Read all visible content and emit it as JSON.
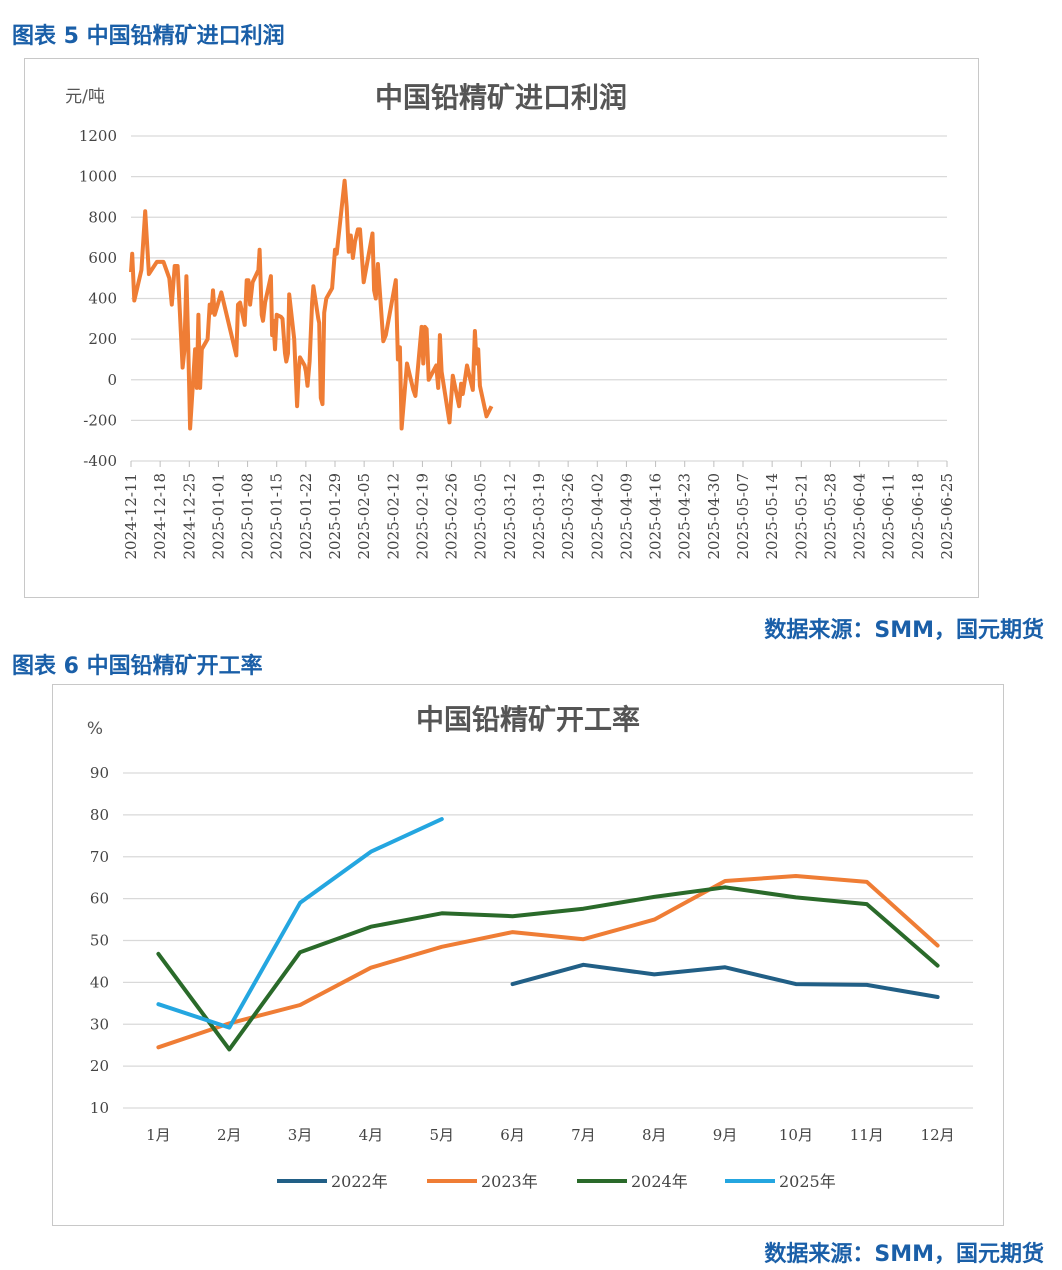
{
  "figure5": {
    "caption": "图表 5 中国铅精矿进口利润",
    "source": "数据来源：SMM，国元期货"
  },
  "figure6": {
    "caption": "图表 6 中国铅精矿开工率",
    "source": "数据来源：SMM，国元期货"
  },
  "colors": {
    "caption": "#1a5fa8",
    "profit_line": "#ef7d35",
    "series_2022": "#215f86",
    "series_2023": "#ef7d35",
    "series_2024": "#2a6a2a",
    "series_2025": "#24a6e0",
    "grid": "#d9d9d9"
  },
  "chart_data": [
    {
      "type": "line",
      "title": "中国铅精矿进口利润",
      "ylabel": "元/吨",
      "xlabel": "",
      "ylim": [
        -400,
        1200
      ],
      "yticks": [
        1200,
        1000,
        800,
        600,
        400,
        200,
        0,
        -200,
        -400
      ],
      "x_range": [
        "2024-12-11",
        "2025-06-25"
      ],
      "x_ticks": [
        "2024-12-11",
        "2024-12-18",
        "2024-12-25",
        "2025-01-01",
        "2025-01-08",
        "2025-01-15",
        "2025-01-22",
        "2025-01-29",
        "2025-02-05",
        "2025-02-12",
        "2025-02-19",
        "2025-02-26",
        "2025-03-05",
        "2025-03-12",
        "2025-03-19",
        "2025-03-26",
        "2025-04-02",
        "2025-04-09",
        "2025-04-16",
        "2025-04-23",
        "2025-04-30",
        "2025-05-07",
        "2025-05-14",
        "2025-05-21",
        "2025-05-28",
        "2025-06-04",
        "2025-06-11",
        "2025-06-18",
        "2025-06-25"
      ],
      "series": [
        {
          "name": "进口利润",
          "points": [
            [
              0.0,
              530
            ],
            [
              0.3,
              620
            ],
            [
              0.8,
              390
            ],
            [
              2.5,
              540
            ],
            [
              3.4,
              830
            ],
            [
              4.3,
              520
            ],
            [
              6.2,
              580
            ],
            [
              7.8,
              580
            ],
            [
              9.2,
              500
            ],
            [
              9.8,
              370
            ],
            [
              10.5,
              560
            ],
            [
              11.2,
              560
            ],
            [
              12.4,
              60
            ],
            [
              12.8,
              140
            ],
            [
              13.3,
              510
            ],
            [
              13.7,
              220
            ],
            [
              14.2,
              -240
            ],
            [
              15.4,
              150
            ],
            [
              15.8,
              -40
            ],
            [
              16.2,
              320
            ],
            [
              16.6,
              -40
            ],
            [
              17.0,
              150
            ],
            [
              18.4,
              200
            ],
            [
              18.9,
              370
            ],
            [
              19.3,
              330
            ],
            [
              19.7,
              440
            ],
            [
              20.1,
              320
            ],
            [
              21.7,
              430
            ],
            [
              25.3,
              120
            ],
            [
              25.7,
              370
            ],
            [
              26.2,
              380
            ],
            [
              27.3,
              270
            ],
            [
              27.8,
              490
            ],
            [
              28.2,
              490
            ],
            [
              28.6,
              370
            ],
            [
              29.2,
              480
            ],
            [
              30.6,
              540
            ],
            [
              30.9,
              640
            ],
            [
              31.4,
              320
            ],
            [
              31.7,
              290
            ],
            [
              32.2,
              380
            ],
            [
              33.6,
              510
            ],
            [
              33.9,
              220
            ],
            [
              34.2,
              290
            ],
            [
              34.6,
              150
            ],
            [
              35.0,
              320
            ],
            [
              36.0,
              310
            ],
            [
              36.4,
              300
            ],
            [
              37.0,
              130
            ],
            [
              37.3,
              90
            ],
            [
              37.7,
              130
            ],
            [
              38.0,
              420
            ],
            [
              39.2,
              200
            ],
            [
              39.9,
              -130
            ],
            [
              40.3,
              50
            ],
            [
              40.6,
              110
            ],
            [
              41.7,
              70
            ],
            [
              42.0,
              40
            ],
            [
              42.4,
              -30
            ],
            [
              42.9,
              90
            ],
            [
              43.5,
              380
            ],
            [
              43.8,
              460
            ],
            [
              45.0,
              300
            ],
            [
              45.2,
              280
            ],
            [
              45.6,
              -90
            ],
            [
              46.0,
              -120
            ],
            [
              46.4,
              330
            ],
            [
              46.9,
              400
            ],
            [
              48.3,
              450
            ],
            [
              49.0,
              640
            ],
            [
              49.4,
              620
            ],
            [
              51.3,
              980
            ],
            [
              51.8,
              850
            ],
            [
              52.3,
              630
            ],
            [
              52.8,
              710
            ],
            [
              53.3,
              600
            ],
            [
              53.8,
              680
            ],
            [
              54.5,
              740
            ],
            [
              55.0,
              740
            ],
            [
              55.9,
              480
            ],
            [
              58.0,
              720
            ],
            [
              58.4,
              440
            ],
            [
              58.8,
              400
            ],
            [
              59.3,
              570
            ],
            [
              60.6,
              190
            ],
            [
              61.2,
              220
            ],
            [
              63.6,
              490
            ],
            [
              64.1,
              100
            ],
            [
              64.6,
              160
            ],
            [
              65.0,
              -240
            ],
            [
              66.3,
              80
            ],
            [
              67.8,
              -50
            ],
            [
              68.3,
              -80
            ],
            [
              69.8,
              260
            ],
            [
              70.2,
              80
            ],
            [
              70.6,
              260
            ],
            [
              71.0,
              250
            ],
            [
              71.5,
              0
            ],
            [
              73.3,
              70
            ],
            [
              73.8,
              -40
            ],
            [
              74.2,
              220
            ],
            [
              74.6,
              40
            ],
            [
              76.5,
              -210
            ],
            [
              77.3,
              20
            ],
            [
              78.8,
              -130
            ],
            [
              79.3,
              -20
            ],
            [
              79.7,
              -70
            ],
            [
              80.7,
              70
            ],
            [
              82.1,
              -50
            ],
            [
              82.6,
              240
            ],
            [
              83.0,
              80
            ],
            [
              83.4,
              150
            ],
            [
              83.8,
              -30
            ],
            [
              85.4,
              -180
            ],
            [
              86.6,
              -130
            ]
          ]
        }
      ]
    },
    {
      "type": "line",
      "title": "中国铅精矿开工率",
      "ylabel": "%",
      "xlabel": "",
      "ylim": [
        10,
        90
      ],
      "yticks": [
        90,
        80,
        70,
        60,
        50,
        40,
        30,
        20,
        10
      ],
      "categories": [
        "1月",
        "2月",
        "3月",
        "4月",
        "5月",
        "6月",
        "7月",
        "8月",
        "9月",
        "10月",
        "11月",
        "12月"
      ],
      "series": [
        {
          "name": "2022年",
          "values": [
            null,
            null,
            null,
            null,
            null,
            39.6,
            44.2,
            41.9,
            43.6,
            39.6,
            39.4,
            36.5
          ]
        },
        {
          "name": "2023年",
          "values": [
            24.5,
            30.2,
            34.6,
            43.5,
            48.5,
            52.0,
            50.3,
            55.0,
            64.2,
            65.4,
            64.0,
            48.8
          ]
        },
        {
          "name": "2024年",
          "values": [
            46.8,
            24.0,
            47.2,
            53.3,
            56.5,
            55.8,
            57.6,
            60.4,
            62.7,
            60.3,
            58.7,
            44.0
          ]
        },
        {
          "name": "2025年",
          "values": [
            34.8,
            29.2,
            59.0,
            71.2,
            79.0,
            null,
            null,
            null,
            null,
            null,
            null,
            null
          ]
        }
      ],
      "legend": [
        "2022年",
        "2023年",
        "2024年",
        "2025年"
      ],
      "legend_position": "bottom"
    }
  ]
}
